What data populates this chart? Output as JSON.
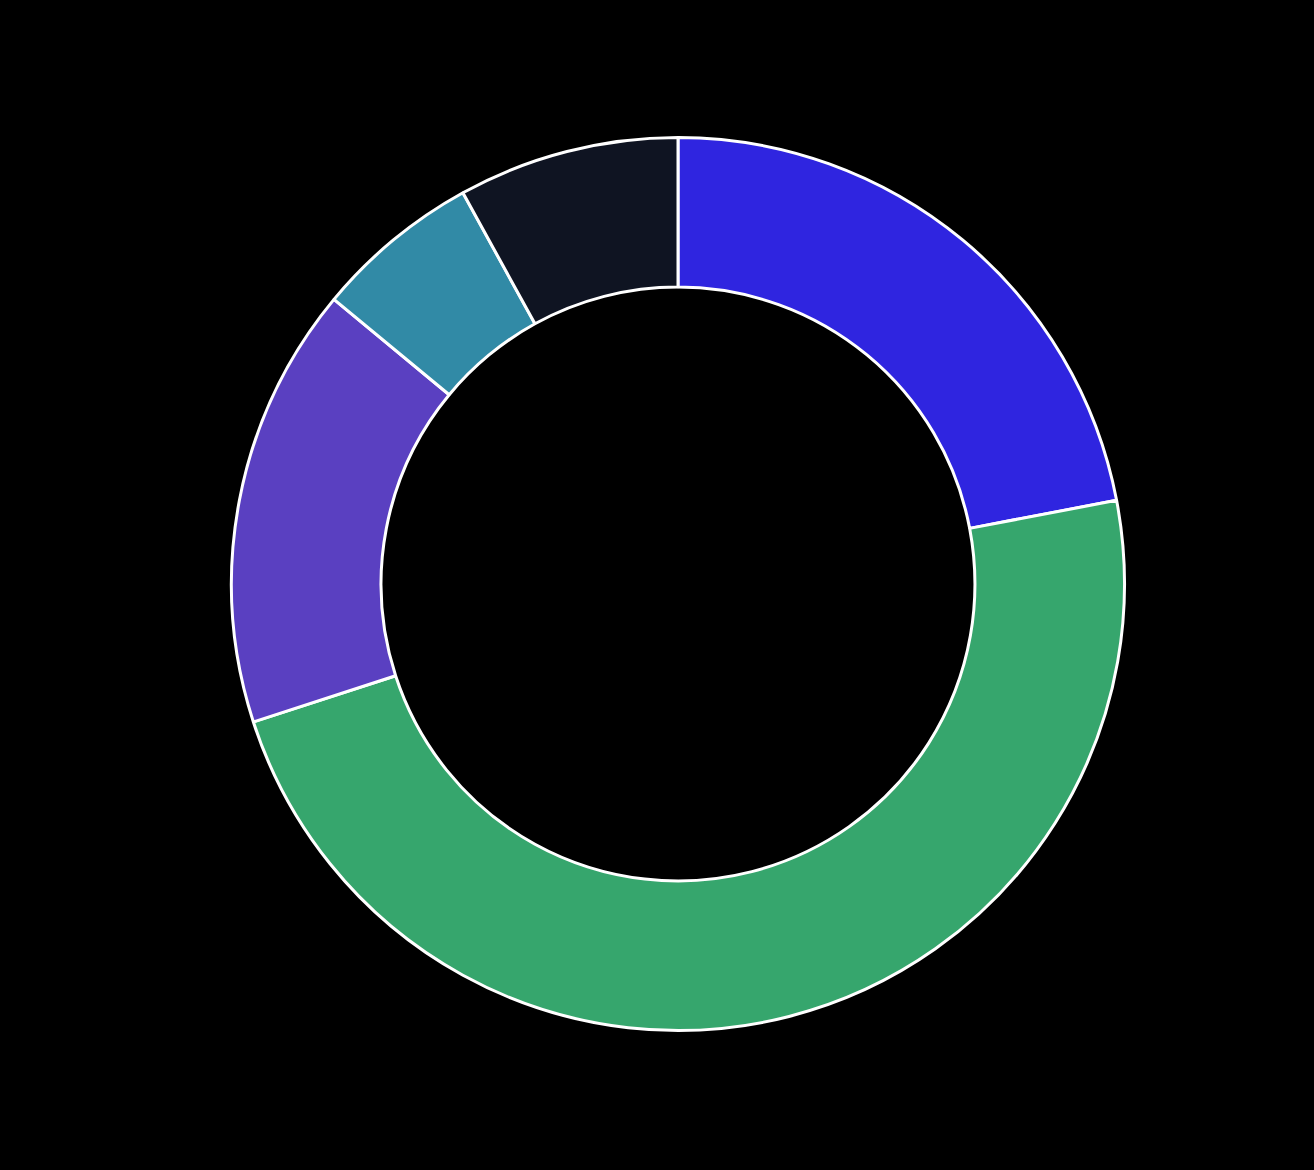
{
  "chart_data": {
    "type": "donut",
    "categories": [
      null,
      null,
      null,
      null,
      null
    ],
    "values": [
      22,
      48,
      16,
      6,
      8
    ],
    "colors": [
      "#2f25e0",
      "#36a66d",
      "#5a40c1",
      "#318aa6",
      "#0f1422"
    ],
    "legend": false
  }
}
